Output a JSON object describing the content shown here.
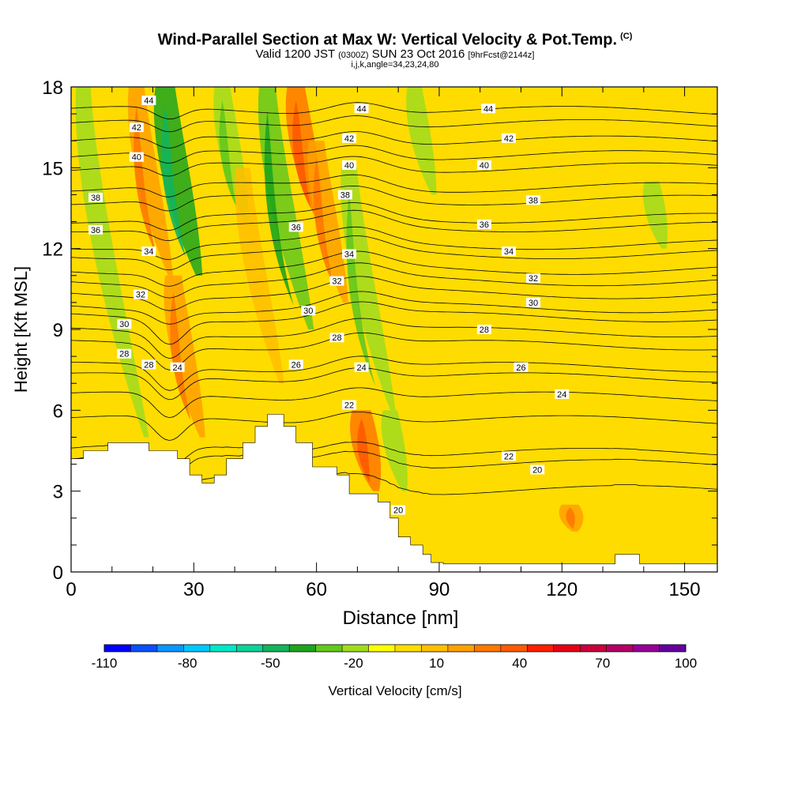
{
  "chart_data": {
    "type": "heatmap",
    "title": "Wind-Parallel Section at Max W: Vertical Velocity & Pot.Temp.",
    "title_units": "(C)",
    "subtitle_main": "Valid 1200 JST",
    "subtitle_utc": "(0300Z)",
    "subtitle_date": "SUN 23 Oct 2016",
    "subtitle_fcst": "[9hrFcst@2144z]",
    "subtitle2": "i,j,k,angle=34,23,24,80",
    "xlabel": "Distance [nm]",
    "ylabel": "Height [Kft MSL]",
    "xlim": [
      0,
      158
    ],
    "ylim": [
      0,
      18
    ],
    "xticks": [
      "0",
      "30",
      "60",
      "90",
      "120",
      "150"
    ],
    "yticks": [
      "0",
      "3",
      "6",
      "9",
      "12",
      "15",
      "18"
    ],
    "colorbar": {
      "label": "Vertical Velocity [cm/s]",
      "tick_labels": [
        "-110",
        "-80",
        "-50",
        "-20",
        "10",
        "40",
        "70",
        "100"
      ],
      "colors": [
        "#0000ff",
        "#0a50ff",
        "#0a96ff",
        "#00c8ff",
        "#00e6c8",
        "#0fd296",
        "#14b45a",
        "#1ea51e",
        "#64c81e",
        "#a0dc1e",
        "#ffff00",
        "#ffdc00",
        "#ffbe00",
        "#ffa000",
        "#ff7800",
        "#ff5a00",
        "#ff1e00",
        "#e60014",
        "#c8003c",
        "#b40064",
        "#960096",
        "#6400a0"
      ]
    },
    "background_value_cm_s": 5,
    "vertical_velocity_features": [
      {
        "x": 3,
        "y_bottom": 5,
        "y_top": 18,
        "value": -15
      },
      {
        "x": 16,
        "y_bottom": 11,
        "y_top": 18,
        "value": 20
      },
      {
        "x": 23,
        "y_bottom": 11,
        "y_top": 18,
        "value": -40
      },
      {
        "x": 25,
        "y_bottom": 5,
        "y_top": 11,
        "value": 25
      },
      {
        "x": 37,
        "y_bottom": 13,
        "y_top": 18,
        "value": -20
      },
      {
        "x": 42,
        "y_bottom": 7,
        "y_top": 15,
        "value": 15
      },
      {
        "x": 48,
        "y_bottom": 9,
        "y_top": 18,
        "value": -25
      },
      {
        "x": 55,
        "y_bottom": 13,
        "y_top": 18,
        "value": 30
      },
      {
        "x": 60,
        "y_bottom": 10,
        "y_top": 16,
        "value": 20
      },
      {
        "x": 68,
        "y_bottom": 6,
        "y_top": 15,
        "value": -20
      },
      {
        "x": 71,
        "y_bottom": 3,
        "y_top": 6,
        "value": 35
      },
      {
        "x": 84,
        "y_bottom": 14,
        "y_top": 18,
        "value": -15
      },
      {
        "x": 78,
        "y_bottom": 3,
        "y_top": 6,
        "value": -15
      },
      {
        "x": 142,
        "y_bottom": 12,
        "y_top": 14.5,
        "value": -15
      },
      {
        "x": 122,
        "y_bottom": 1.5,
        "y_top": 2.5,
        "value": 25
      }
    ],
    "terrain_top_kft": [
      [
        0,
        4.2
      ],
      [
        3,
        4.2
      ],
      [
        3,
        4.5
      ],
      [
        9,
        4.5
      ],
      [
        9,
        4.8
      ],
      [
        19,
        4.8
      ],
      [
        19,
        4.5
      ],
      [
        26,
        4.5
      ],
      [
        26,
        4.2
      ],
      [
        29,
        4.2
      ],
      [
        29,
        3.6
      ],
      [
        32,
        3.6
      ],
      [
        32,
        3.3
      ],
      [
        35,
        3.3
      ],
      [
        35,
        3.6
      ],
      [
        38,
        3.6
      ],
      [
        38,
        4.2
      ],
      [
        42,
        4.2
      ],
      [
        42,
        4.8
      ],
      [
        45,
        4.8
      ],
      [
        45,
        5.4
      ],
      [
        48,
        5.4
      ],
      [
        48,
        5.85
      ],
      [
        52,
        5.85
      ],
      [
        52,
        5.4
      ],
      [
        55,
        5.4
      ],
      [
        55,
        4.8
      ],
      [
        59,
        4.8
      ],
      [
        59,
        3.9
      ],
      [
        65,
        3.9
      ],
      [
        65,
        3.6
      ],
      [
        68,
        3.6
      ],
      [
        68,
        2.9
      ],
      [
        75,
        2.9
      ],
      [
        75,
        2.6
      ],
      [
        78,
        2.6
      ],
      [
        78,
        2.0
      ],
      [
        80,
        2.0
      ],
      [
        80,
        1.3
      ],
      [
        83,
        1.3
      ],
      [
        83,
        1.0
      ],
      [
        86,
        1.0
      ],
      [
        86,
        0.65
      ],
      [
        88,
        0.65
      ],
      [
        88,
        0.35
      ],
      [
        91,
        0.35
      ],
      [
        91,
        0.3
      ],
      [
        133,
        0.3
      ],
      [
        133,
        0.65
      ],
      [
        139,
        0.65
      ],
      [
        139,
        0.3
      ],
      [
        158,
        0.3
      ]
    ],
    "isentrope_levels_C": [
      "20",
      "22",
      "24",
      "26",
      "28",
      "30",
      "32",
      "34",
      "36",
      "38",
      "40",
      "42",
      "44"
    ],
    "contour_labels": [
      {
        "text": "44",
        "x": 19,
        "y": 17.5
      },
      {
        "text": "42",
        "x": 16,
        "y": 16.5
      },
      {
        "text": "40",
        "x": 16,
        "y": 15.4
      },
      {
        "text": "38",
        "x": 6,
        "y": 13.9
      },
      {
        "text": "36",
        "x": 6,
        "y": 12.7
      },
      {
        "text": "34",
        "x": 19,
        "y": 11.9
      },
      {
        "text": "32",
        "x": 17,
        "y": 10.3
      },
      {
        "text": "30",
        "x": 13,
        "y": 9.2
      },
      {
        "text": "28",
        "x": 13,
        "y": 8.1
      },
      {
        "text": "28",
        "x": 19,
        "y": 7.7
      },
      {
        "text": "24",
        "x": 26,
        "y": 7.6
      },
      {
        "text": "26",
        "x": 55,
        "y": 7.7
      },
      {
        "text": "44",
        "x": 71,
        "y": 17.2
      },
      {
        "text": "44",
        "x": 102,
        "y": 17.2
      },
      {
        "text": "42",
        "x": 68,
        "y": 16.1
      },
      {
        "text": "42",
        "x": 107,
        "y": 16.1
      },
      {
        "text": "40",
        "x": 68,
        "y": 15.1
      },
      {
        "text": "40",
        "x": 101,
        "y": 15.1
      },
      {
        "text": "38",
        "x": 67,
        "y": 14.0
      },
      {
        "text": "38",
        "x": 113,
        "y": 13.8
      },
      {
        "text": "36",
        "x": 55,
        "y": 12.8
      },
      {
        "text": "36",
        "x": 101,
        "y": 12.9
      },
      {
        "text": "34",
        "x": 68,
        "y": 11.8
      },
      {
        "text": "34",
        "x": 107,
        "y": 11.9
      },
      {
        "text": "32",
        "x": 65,
        "y": 10.8
      },
      {
        "text": "32",
        "x": 113,
        "y": 10.9
      },
      {
        "text": "30",
        "x": 58,
        "y": 9.7
      },
      {
        "text": "30",
        "x": 113,
        "y": 10.0
      },
      {
        "text": "28",
        "x": 65,
        "y": 8.7
      },
      {
        "text": "28",
        "x": 101,
        "y": 9.0
      },
      {
        "text": "24",
        "x": 71,
        "y": 7.6
      },
      {
        "text": "26",
        "x": 110,
        "y": 7.6
      },
      {
        "text": "24",
        "x": 120,
        "y": 6.6
      },
      {
        "text": "22",
        "x": 68,
        "y": 6.2
      },
      {
        "text": "22",
        "x": 107,
        "y": 4.3
      },
      {
        "text": "20",
        "x": 114,
        "y": 3.8
      },
      {
        "text": "20",
        "x": 80,
        "y": 2.3
      }
    ]
  }
}
